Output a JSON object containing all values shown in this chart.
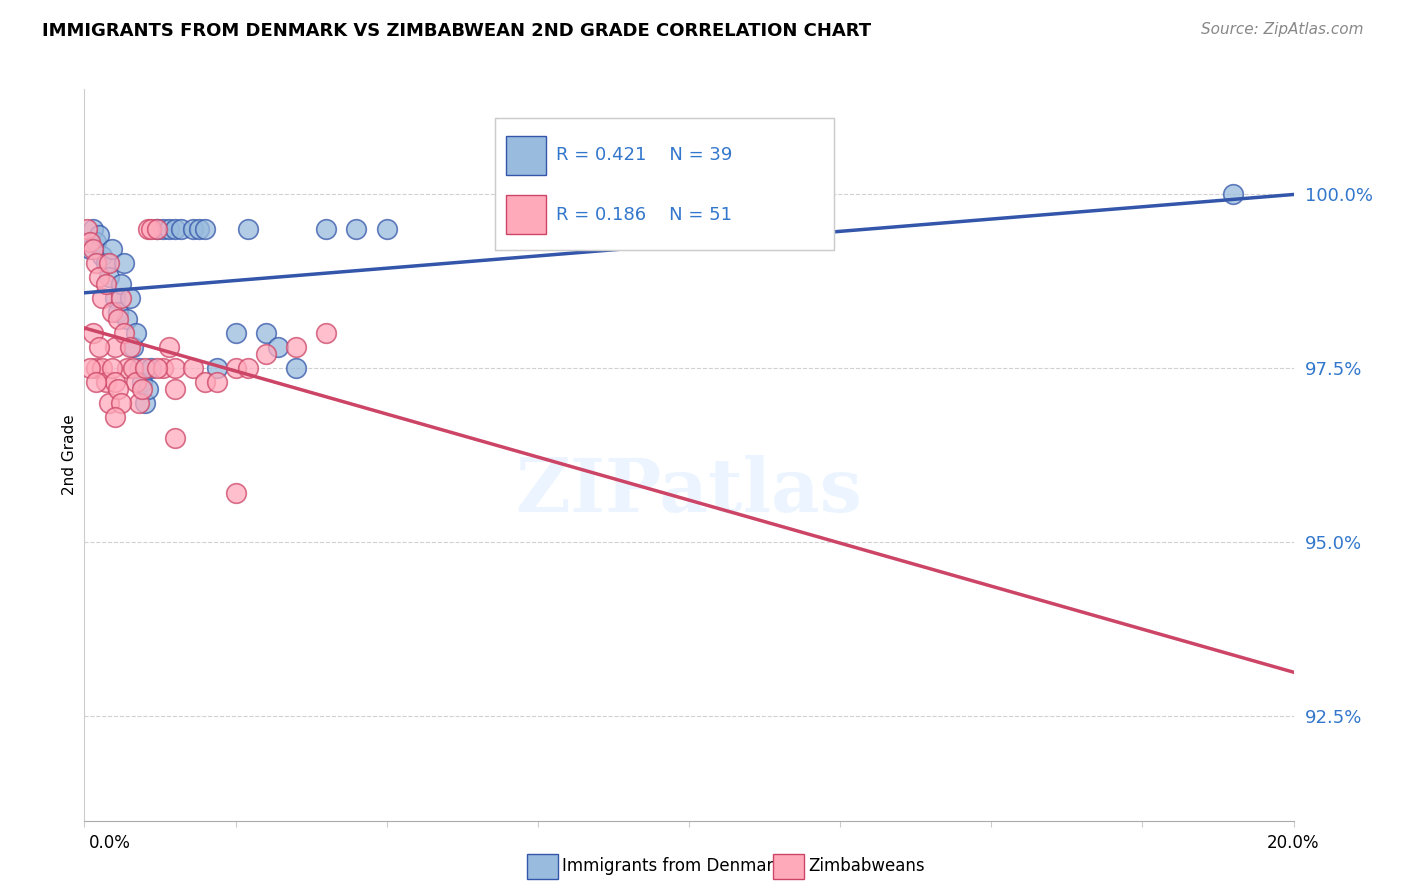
{
  "title": "IMMIGRANTS FROM DENMARK VS ZIMBABWEAN 2ND GRADE CORRELATION CHART",
  "source": "Source: ZipAtlas.com",
  "ylabel": "2nd Grade",
  "ytick_values": [
    92.5,
    95.0,
    97.5,
    100.0
  ],
  "legend_label1": "Immigrants from Denmark",
  "legend_label2": "Zimbabweans",
  "R1": 0.421,
  "N1": 39,
  "R2": 0.186,
  "N2": 51,
  "color_blue": "#99BBDD",
  "color_pink": "#FFAABB",
  "color_blue_line": "#3355AA",
  "color_pink_line": "#CC4466",
  "xlim": [
    0.0,
    20.0
  ],
  "ylim": [
    91.0,
    101.5
  ],
  "denmark_x": [
    0.1,
    0.15,
    0.2,
    0.25,
    0.3,
    0.35,
    0.4,
    0.45,
    0.5,
    0.55,
    0.6,
    0.65,
    0.7,
    0.75,
    0.8,
    0.85,
    0.9,
    0.95,
    1.0,
    1.05,
    1.1,
    1.2,
    1.3,
    1.4,
    1.5,
    1.6,
    1.8,
    1.9,
    2.0,
    2.2,
    2.5,
    2.7,
    3.0,
    3.2,
    3.5,
    4.0,
    4.5,
    5.0,
    19.0
  ],
  "denmark_y": [
    99.2,
    99.5,
    99.3,
    99.4,
    99.1,
    99.0,
    98.8,
    99.2,
    98.5,
    98.3,
    98.7,
    99.0,
    98.2,
    98.5,
    97.8,
    98.0,
    97.5,
    97.3,
    97.0,
    97.2,
    97.5,
    99.5,
    99.5,
    99.5,
    99.5,
    99.5,
    99.5,
    99.5,
    99.5,
    97.5,
    98.0,
    99.5,
    98.0,
    97.8,
    97.5,
    99.5,
    99.5,
    99.5,
    100.0
  ],
  "zimbabwe_x": [
    0.05,
    0.1,
    0.15,
    0.2,
    0.25,
    0.3,
    0.35,
    0.4,
    0.45,
    0.5,
    0.55,
    0.6,
    0.65,
    0.7,
    0.75,
    0.8,
    0.85,
    0.9,
    0.95,
    1.0,
    1.05,
    1.1,
    1.2,
    1.3,
    1.4,
    1.5,
    0.15,
    0.2,
    0.25,
    0.3,
    0.35,
    0.4,
    0.45,
    0.5,
    0.55,
    0.6,
    1.2,
    1.5,
    1.8,
    2.0,
    2.2,
    2.5,
    2.7,
    3.0,
    3.5,
    4.0,
    0.1,
    0.2,
    0.5,
    1.5,
    2.5
  ],
  "zimbabwe_y": [
    99.5,
    99.3,
    99.2,
    99.0,
    98.8,
    98.5,
    98.7,
    99.0,
    98.3,
    97.8,
    98.2,
    98.5,
    98.0,
    97.5,
    97.8,
    97.5,
    97.3,
    97.0,
    97.2,
    97.5,
    99.5,
    99.5,
    99.5,
    97.5,
    97.8,
    97.5,
    98.0,
    97.5,
    97.8,
    97.5,
    97.3,
    97.0,
    97.5,
    97.3,
    97.2,
    97.0,
    97.5,
    97.2,
    97.5,
    97.3,
    97.3,
    97.5,
    97.5,
    97.7,
    97.8,
    98.0,
    97.5,
    97.3,
    96.8,
    96.5,
    95.7
  ]
}
